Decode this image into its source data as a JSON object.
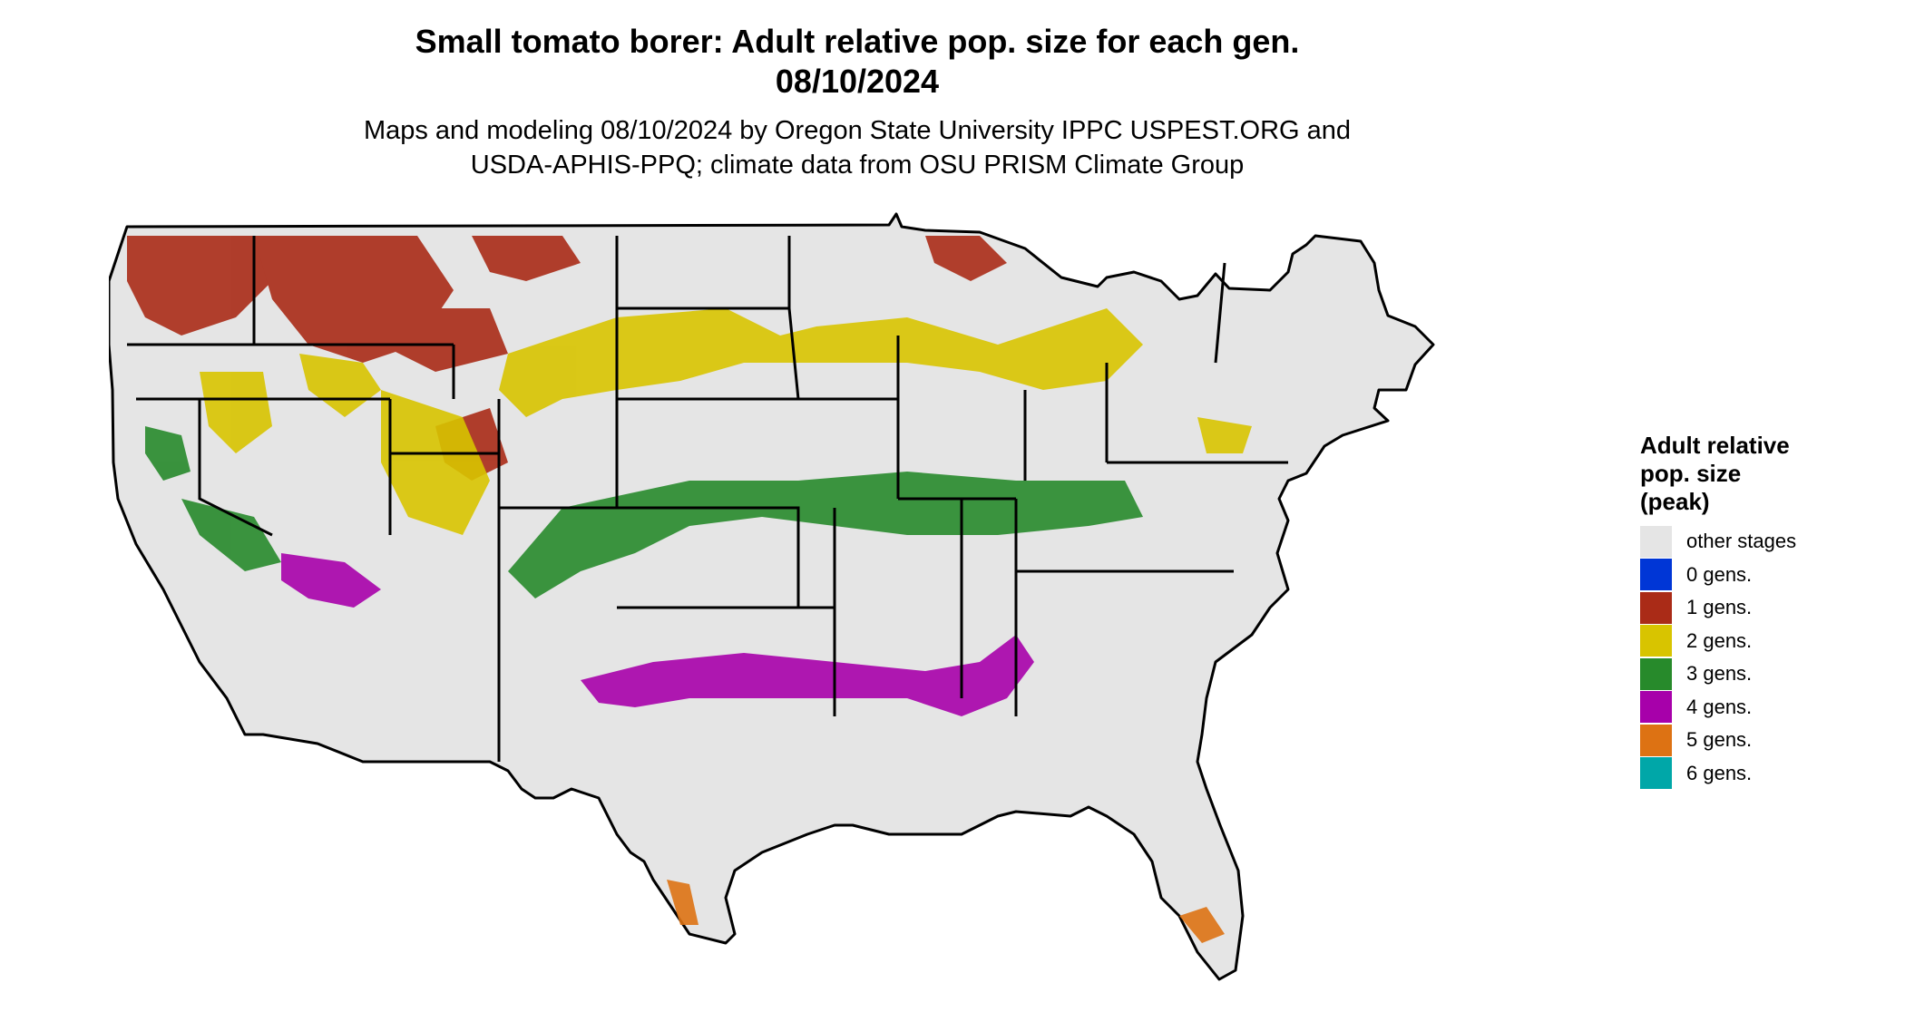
{
  "title": {
    "line1": "Small tomato borer: Adult relative pop. size for each gen.",
    "line2": "08/10/2024"
  },
  "subtitle": {
    "line1": "Maps and modeling 08/10/2024 by Oregon State University IPPC USPEST.ORG and",
    "line2": "USDA-APHIS-PPQ; climate data from OSU PRISM Climate Group"
  },
  "legend": {
    "title": "Adult relative pop. size (peak)",
    "title_lines": [
      "Adult relative",
      "pop. size",
      "(peak)"
    ],
    "items": [
      {
        "label": "other stages",
        "color": "#e5e5e5"
      },
      {
        "label": "0 gens.",
        "color": "#0036d6"
      },
      {
        "label": "1 gens.",
        "color": "#aa2b17"
      },
      {
        "label": "2 gens.",
        "color": "#d8c400"
      },
      {
        "label": "3 gens.",
        "color": "#278a2b"
      },
      {
        "label": "4 gens.",
        "color": "#a700aa"
      },
      {
        "label": "5 gens.",
        "color": "#dd7213"
      },
      {
        "label": "6 gens.",
        "color": "#00a7a8"
      }
    ]
  },
  "map": {
    "region": "Contiguous United States",
    "base_color": "#e5e5e5",
    "border_color": "#000000"
  }
}
